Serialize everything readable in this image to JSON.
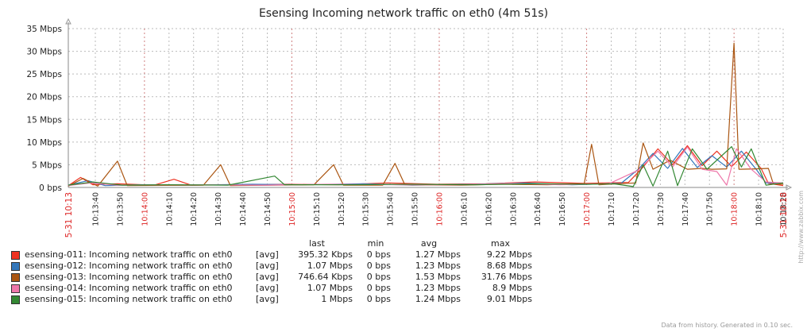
{
  "chart_data": {
    "type": "line",
    "title": "Esensing Incoming network traffic on eth0 (4m 51s)",
    "ylim": [
      0,
      35
    ],
    "y_ticks": [
      "0 bps",
      "5 Mbps",
      "10 Mbps",
      "15 Mbps",
      "20 Mbps",
      "25 Mbps",
      "30 Mbps",
      "35 Mbps"
    ],
    "y_tick_values": [
      0,
      5,
      10,
      15,
      20,
      25,
      30,
      35
    ],
    "x_range_seconds": [
      0,
      291
    ],
    "x_start_label": "05-31 10:13",
    "x_end_label": "05-31 10:18",
    "x_ticks": [
      {
        "label": "10:13:40",
        "t": 11,
        "major": false
      },
      {
        "label": "10:13:50",
        "t": 21,
        "major": false
      },
      {
        "label": "10:14:00",
        "t": 31,
        "major": true
      },
      {
        "label": "10:14:10",
        "t": 41,
        "major": false
      },
      {
        "label": "10:14:20",
        "t": 51,
        "major": false
      },
      {
        "label": "10:14:30",
        "t": 61,
        "major": false
      },
      {
        "label": "10:14:40",
        "t": 71,
        "major": false
      },
      {
        "label": "10:14:50",
        "t": 81,
        "major": false
      },
      {
        "label": "10:15:00",
        "t": 91,
        "major": true
      },
      {
        "label": "10:15:10",
        "t": 101,
        "major": false
      },
      {
        "label": "10:15:20",
        "t": 111,
        "major": false
      },
      {
        "label": "10:15:30",
        "t": 121,
        "major": false
      },
      {
        "label": "10:15:40",
        "t": 131,
        "major": false
      },
      {
        "label": "10:15:50",
        "t": 141,
        "major": false
      },
      {
        "label": "10:16:00",
        "t": 151,
        "major": true
      },
      {
        "label": "10:16:10",
        "t": 161,
        "major": false
      },
      {
        "label": "10:16:20",
        "t": 171,
        "major": false
      },
      {
        "label": "10:16:30",
        "t": 181,
        "major": false
      },
      {
        "label": "10:16:40",
        "t": 191,
        "major": false
      },
      {
        "label": "10:16:50",
        "t": 201,
        "major": false
      },
      {
        "label": "10:17:00",
        "t": 211,
        "major": true
      },
      {
        "label": "10:17:10",
        "t": 221,
        "major": false
      },
      {
        "label": "10:17:20",
        "t": 231,
        "major": false
      },
      {
        "label": "10:17:30",
        "t": 241,
        "major": false
      },
      {
        "label": "10:17:40",
        "t": 251,
        "major": false
      },
      {
        "label": "10:17:50",
        "t": 261,
        "major": false
      },
      {
        "label": "10:18:00",
        "t": 271,
        "major": true
      },
      {
        "label": "10:18:10",
        "t": 281,
        "major": false
      },
      {
        "label": "10:18:20",
        "t": 291,
        "major": false
      }
    ],
    "legend_headers": {
      "last": "last",
      "min": "min",
      "avg": "avg",
      "max": "max"
    },
    "series": [
      {
        "name": "esensing-011: Incoming network traffic on eth0",
        "color": "#ee3322",
        "fn": "[avg]",
        "last": "395.32 Kbps",
        "min": "0 bps",
        "avg": "1.27 Mbps",
        "max": "9.22 Mbps",
        "points": [
          [
            0,
            0.4
          ],
          [
            5,
            2.2
          ],
          [
            10,
            0.6
          ],
          [
            20,
            0.8
          ],
          [
            35,
            0.5
          ],
          [
            43,
            1.8
          ],
          [
            50,
            0.5
          ],
          [
            70,
            0.6
          ],
          [
            90,
            0.7
          ],
          [
            110,
            0.6
          ],
          [
            130,
            1.0
          ],
          [
            150,
            0.7
          ],
          [
            170,
            0.8
          ],
          [
            190,
            1.2
          ],
          [
            210,
            0.9
          ],
          [
            228,
            1.1
          ],
          [
            234,
            4.5
          ],
          [
            240,
            8.5
          ],
          [
            246,
            5.0
          ],
          [
            252,
            9.2
          ],
          [
            258,
            4.8
          ],
          [
            264,
            8.0
          ],
          [
            270,
            4.6
          ],
          [
            276,
            7.8
          ],
          [
            282,
            4.2
          ],
          [
            285,
            0.9
          ],
          [
            291,
            0.4
          ]
        ]
      },
      {
        "name": "esensing-012: Incoming network traffic on eth0",
        "color": "#3377bb",
        "fn": "[avg]",
        "last": "1.07 Mbps",
        "min": "0 bps",
        "avg": "1.23 Mbps",
        "max": "8.68 Mbps",
        "points": [
          [
            0,
            0.5
          ],
          [
            8,
            1.5
          ],
          [
            15,
            0.4
          ],
          [
            30,
            0.6
          ],
          [
            50,
            0.5
          ],
          [
            75,
            0.7
          ],
          [
            95,
            0.6
          ],
          [
            120,
            0.8
          ],
          [
            140,
            0.5
          ],
          [
            165,
            0.7
          ],
          [
            185,
            1.0
          ],
          [
            205,
            0.6
          ],
          [
            225,
            0.9
          ],
          [
            232,
            4.0
          ],
          [
            238,
            7.5
          ],
          [
            244,
            4.2
          ],
          [
            250,
            8.6
          ],
          [
            256,
            4.4
          ],
          [
            262,
            7.0
          ],
          [
            268,
            4.5
          ],
          [
            274,
            8.0
          ],
          [
            280,
            4.0
          ],
          [
            284,
            1.0
          ],
          [
            291,
            1.0
          ]
        ]
      },
      {
        "name": "esensing-013: Incoming network traffic on eth0",
        "color": "#aa5511",
        "fn": "[avg]",
        "last": "746.64 Kbps",
        "min": "0 bps",
        "avg": "1.53 Mbps",
        "max": "31.76 Mbps",
        "points": [
          [
            0,
            0.3
          ],
          [
            6,
            2.0
          ],
          [
            12,
            0.3
          ],
          [
            20,
            5.8
          ],
          [
            24,
            0.4
          ],
          [
            55,
            0.5
          ],
          [
            62,
            5.0
          ],
          [
            66,
            0.4
          ],
          [
            100,
            0.6
          ],
          [
            108,
            5.0
          ],
          [
            112,
            0.5
          ],
          [
            128,
            0.5
          ],
          [
            133,
            5.3
          ],
          [
            137,
            0.6
          ],
          [
            160,
            0.5
          ],
          [
            175,
            0.7
          ],
          [
            195,
            0.6
          ],
          [
            210,
            0.8
          ],
          [
            213,
            9.5
          ],
          [
            216,
            0.6
          ],
          [
            231,
            1.0
          ],
          [
            234,
            9.8
          ],
          [
            238,
            4.0
          ],
          [
            245,
            6.0
          ],
          [
            252,
            4.0
          ],
          [
            258,
            4.2
          ],
          [
            262,
            4.0
          ],
          [
            268,
            4.1
          ],
          [
            271,
            31.8
          ],
          [
            273,
            4.0
          ],
          [
            280,
            4.1
          ],
          [
            285,
            4.2
          ],
          [
            287,
            0.8
          ],
          [
            291,
            0.7
          ]
        ]
      },
      {
        "name": "esensing-014: Incoming network traffic on eth0",
        "color": "#ee77aa",
        "fn": "[avg]",
        "last": "1.07 Mbps",
        "min": "0 bps",
        "avg": "1.23 Mbps",
        "max": "8.9 Mbps",
        "points": [
          [
            0,
            0.4
          ],
          [
            9,
            1.0
          ],
          [
            20,
            0.5
          ],
          [
            45,
            0.6
          ],
          [
            80,
            0.5
          ],
          [
            105,
            0.7
          ],
          [
            135,
            0.6
          ],
          [
            160,
            0.6
          ],
          [
            180,
            0.9
          ],
          [
            200,
            0.6
          ],
          [
            220,
            0.8
          ],
          [
            232,
            3.8
          ],
          [
            240,
            8.0
          ],
          [
            246,
            4.5
          ],
          [
            252,
            8.9
          ],
          [
            258,
            4.0
          ],
          [
            264,
            3.5
          ],
          [
            268,
            0.5
          ],
          [
            272,
            8.5
          ],
          [
            278,
            4.0
          ],
          [
            284,
            1.2
          ],
          [
            291,
            1.0
          ]
        ]
      },
      {
        "name": "esensing-015: Incoming network traffic on eth0",
        "color": "#338833",
        "fn": "[avg]",
        "last": "1 Mbps",
        "min": "0 bps",
        "avg": "1.24 Mbps",
        "max": "9.01 Mbps",
        "points": [
          [
            0,
            0.5
          ],
          [
            10,
            1.2
          ],
          [
            22,
            0.5
          ],
          [
            40,
            0.6
          ],
          [
            65,
            0.5
          ],
          [
            84,
            2.5
          ],
          [
            88,
            0.6
          ],
          [
            115,
            0.6
          ],
          [
            140,
            0.7
          ],
          [
            165,
            0.6
          ],
          [
            190,
            0.8
          ],
          [
            212,
            0.7
          ],
          [
            222,
            0.8
          ],
          [
            230,
            0.2
          ],
          [
            234,
            5.0
          ],
          [
            238,
            0.3
          ],
          [
            244,
            8.0
          ],
          [
            248,
            0.4
          ],
          [
            254,
            8.5
          ],
          [
            260,
            4.0
          ],
          [
            266,
            7.0
          ],
          [
            270,
            9.0
          ],
          [
            274,
            4.5
          ],
          [
            278,
            8.5
          ],
          [
            284,
            0.5
          ],
          [
            291,
            1.0
          ]
        ]
      }
    ]
  },
  "footer": "Data from history. Generated in 0.10 sec.",
  "side_credit": "http://www.zabbix.com"
}
